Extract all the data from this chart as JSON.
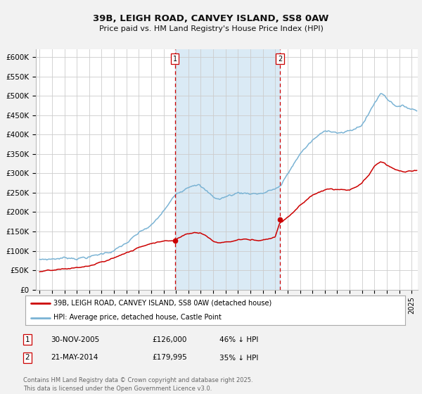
{
  "title": "39B, LEIGH ROAD, CANVEY ISLAND, SS8 0AW",
  "subtitle": "Price paid vs. HM Land Registry's House Price Index (HPI)",
  "background_color": "#f2f2f2",
  "plot_bg_color": "#ffffff",
  "grid_color": "#cccccc",
  "hpi_line_color": "#7ab3d4",
  "price_line_color": "#cc0000",
  "shade_color": "#daeaf5",
  "vline_color": "#cc0000",
  "ylim": [
    0,
    620000
  ],
  "yticks": [
    0,
    50000,
    100000,
    150000,
    200000,
    250000,
    300000,
    350000,
    400000,
    450000,
    500000,
    550000,
    600000
  ],
  "ytick_labels": [
    "£0",
    "£50K",
    "£100K",
    "£150K",
    "£200K",
    "£250K",
    "£300K",
    "£350K",
    "£400K",
    "£450K",
    "£500K",
    "£550K",
    "£600K"
  ],
  "sale1_date_x": 2005.92,
  "sale1_price": 126000,
  "sale1_label": "1",
  "sale2_date_x": 2014.38,
  "sale2_price": 179995,
  "sale2_label": "2",
  "legend_entry1": "39B, LEIGH ROAD, CANVEY ISLAND, SS8 0AW (detached house)",
  "legend_entry2": "HPI: Average price, detached house, Castle Point",
  "table_row1": [
    "1",
    "30-NOV-2005",
    "£126,000",
    "46% ↓ HPI"
  ],
  "table_row2": [
    "2",
    "21-MAY-2014",
    "£179,995",
    "35% ↓ HPI"
  ],
  "footnote": "Contains HM Land Registry data © Crown copyright and database right 2025.\nThis data is licensed under the Open Government Licence v3.0.",
  "xlim_start": 1994.7,
  "xlim_end": 2025.5,
  "hpi_points": [
    [
      1995.0,
      78000
    ],
    [
      1995.5,
      79000
    ],
    [
      1996.0,
      80000
    ],
    [
      1996.5,
      82000
    ],
    [
      1997.0,
      83000
    ],
    [
      1997.5,
      84000
    ],
    [
      1998.0,
      85000
    ],
    [
      1998.5,
      87000
    ],
    [
      1999.0,
      89000
    ],
    [
      1999.5,
      91000
    ],
    [
      2000.0,
      95000
    ],
    [
      2000.5,
      100000
    ],
    [
      2001.0,
      106000
    ],
    [
      2001.5,
      113000
    ],
    [
      2002.0,
      122000
    ],
    [
      2002.5,
      133000
    ],
    [
      2003.0,
      143000
    ],
    [
      2003.5,
      152000
    ],
    [
      2004.0,
      160000
    ],
    [
      2004.5,
      175000
    ],
    [
      2005.0,
      195000
    ],
    [
      2005.5,
      215000
    ],
    [
      2006.0,
      235000
    ],
    [
      2006.5,
      248000
    ],
    [
      2007.0,
      262000
    ],
    [
      2007.5,
      272000
    ],
    [
      2007.8,
      275000
    ],
    [
      2008.0,
      268000
    ],
    [
      2008.5,
      252000
    ],
    [
      2009.0,
      237000
    ],
    [
      2009.5,
      232000
    ],
    [
      2010.0,
      238000
    ],
    [
      2010.5,
      242000
    ],
    [
      2011.0,
      248000
    ],
    [
      2011.5,
      247000
    ],
    [
      2012.0,
      248000
    ],
    [
      2012.5,
      248000
    ],
    [
      2013.0,
      250000
    ],
    [
      2013.5,
      255000
    ],
    [
      2014.0,
      260000
    ],
    [
      2014.5,
      268000
    ],
    [
      2015.0,
      295000
    ],
    [
      2015.5,
      320000
    ],
    [
      2016.0,
      348000
    ],
    [
      2016.5,
      365000
    ],
    [
      2017.0,
      380000
    ],
    [
      2017.5,
      392000
    ],
    [
      2018.0,
      400000
    ],
    [
      2018.5,
      405000
    ],
    [
      2019.0,
      403000
    ],
    [
      2019.5,
      402000
    ],
    [
      2020.0,
      403000
    ],
    [
      2020.5,
      408000
    ],
    [
      2021.0,
      420000
    ],
    [
      2021.5,
      445000
    ],
    [
      2022.0,
      475000
    ],
    [
      2022.5,
      500000
    ],
    [
      2022.8,
      498000
    ],
    [
      2023.0,
      490000
    ],
    [
      2023.5,
      478000
    ],
    [
      2024.0,
      472000
    ],
    [
      2024.5,
      468000
    ],
    [
      2025.0,
      465000
    ],
    [
      2025.3,
      462000
    ]
  ],
  "price_points": [
    [
      1995.0,
      46000
    ],
    [
      1995.5,
      46500
    ],
    [
      1996.0,
      47000
    ],
    [
      1996.5,
      47500
    ],
    [
      1997.0,
      48500
    ],
    [
      1997.5,
      50000
    ],
    [
      1998.0,
      52000
    ],
    [
      1998.5,
      54000
    ],
    [
      1999.0,
      56000
    ],
    [
      1999.5,
      60000
    ],
    [
      2000.0,
      65000
    ],
    [
      2000.5,
      70000
    ],
    [
      2001.0,
      76000
    ],
    [
      2001.5,
      83000
    ],
    [
      2002.0,
      90000
    ],
    [
      2002.5,
      96000
    ],
    [
      2003.0,
      103000
    ],
    [
      2003.5,
      110000
    ],
    [
      2004.0,
      117000
    ],
    [
      2004.5,
      122000
    ],
    [
      2005.0,
      124000
    ],
    [
      2005.5,
      125000
    ],
    [
      2005.92,
      126000
    ],
    [
      2006.0,
      130000
    ],
    [
      2006.5,
      140000
    ],
    [
      2007.0,
      147000
    ],
    [
      2007.5,
      150000
    ],
    [
      2008.0,
      148000
    ],
    [
      2008.5,
      140000
    ],
    [
      2009.0,
      128000
    ],
    [
      2009.5,
      124000
    ],
    [
      2010.0,
      126000
    ],
    [
      2010.5,
      128000
    ],
    [
      2011.0,
      132000
    ],
    [
      2011.5,
      134000
    ],
    [
      2012.0,
      131000
    ],
    [
      2012.5,
      130000
    ],
    [
      2013.0,
      133000
    ],
    [
      2013.5,
      137000
    ],
    [
      2014.0,
      143000
    ],
    [
      2014.38,
      179995
    ],
    [
      2014.5,
      182000
    ],
    [
      2015.0,
      195000
    ],
    [
      2015.5,
      210000
    ],
    [
      2016.0,
      228000
    ],
    [
      2016.5,
      240000
    ],
    [
      2017.0,
      252000
    ],
    [
      2017.5,
      260000
    ],
    [
      2018.0,
      266000
    ],
    [
      2018.5,
      268000
    ],
    [
      2019.0,
      265000
    ],
    [
      2019.5,
      264000
    ],
    [
      2020.0,
      262000
    ],
    [
      2020.5,
      268000
    ],
    [
      2021.0,
      278000
    ],
    [
      2021.5,
      295000
    ],
    [
      2022.0,
      318000
    ],
    [
      2022.5,
      330000
    ],
    [
      2022.8,
      328000
    ],
    [
      2023.0,
      322000
    ],
    [
      2023.5,
      312000
    ],
    [
      2024.0,
      306000
    ],
    [
      2024.5,
      304000
    ],
    [
      2025.0,
      306000
    ],
    [
      2025.3,
      307000
    ]
  ]
}
